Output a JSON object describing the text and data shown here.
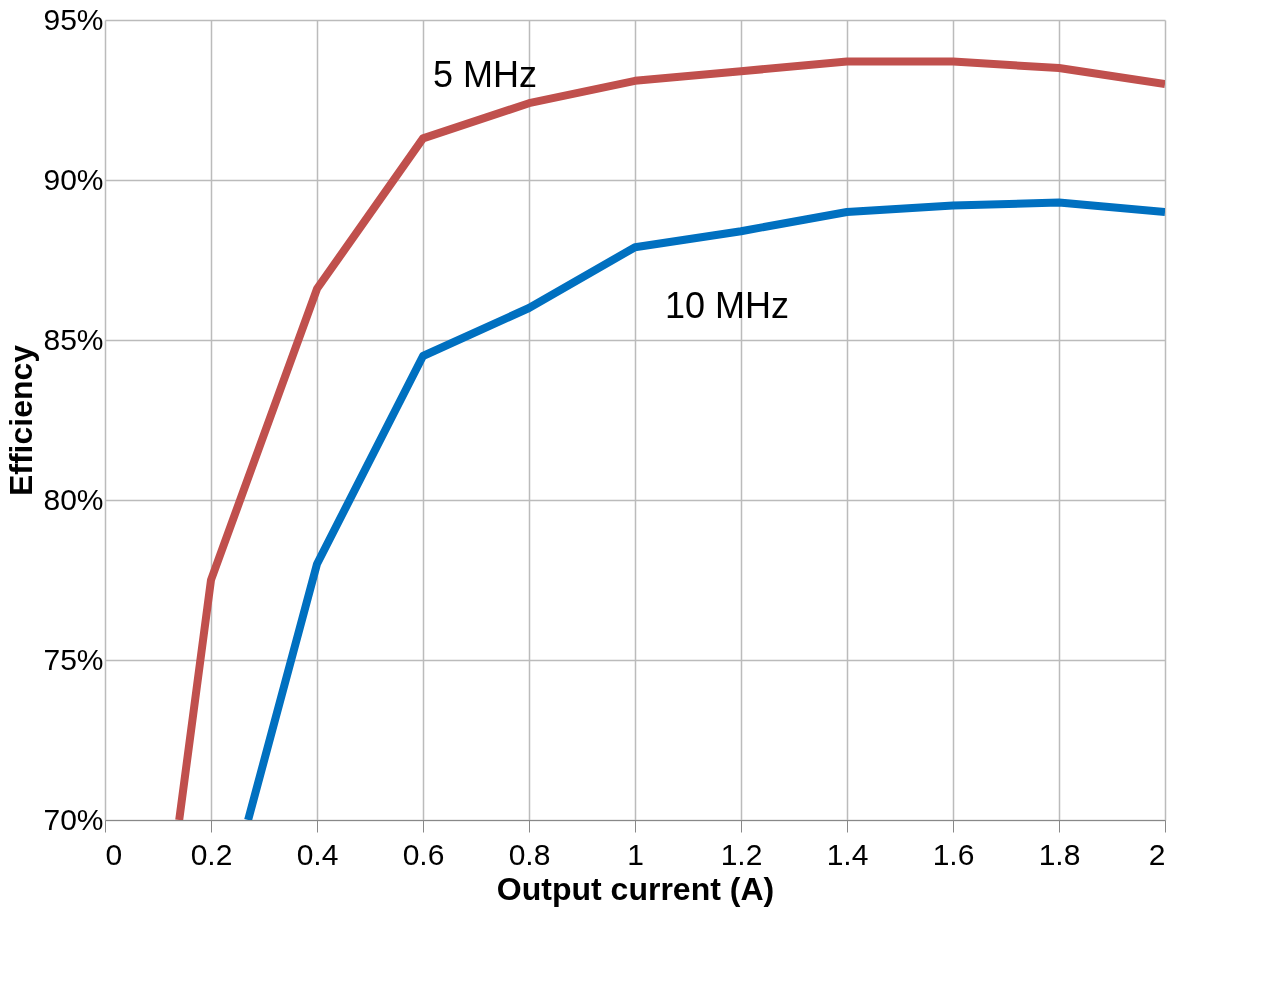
{
  "chart_data": {
    "type": "line",
    "xlabel": "Output current (A)",
    "ylabel": "Efficiency",
    "xlim": [
      0,
      2
    ],
    "xticks": [
      0,
      0.2,
      0.4,
      0.6,
      0.8,
      1,
      1.2,
      1.4,
      1.6,
      1.8,
      2
    ],
    "ylim": [
      70,
      95
    ],
    "yticks": [
      {
        "value": 70,
        "label": "70%"
      },
      {
        "value": 75,
        "label": "75%"
      },
      {
        "value": 80,
        "label": "80%"
      },
      {
        "value": 85,
        "label": "85%"
      },
      {
        "value": 90,
        "label": "90%"
      },
      {
        "value": 95,
        "label": "95%"
      }
    ],
    "grid": true,
    "legend": false,
    "marker": "none",
    "line_style": "solid",
    "series": [
      {
        "name": "5 MHz",
        "color": "#c0504d",
        "x": [
          0.14,
          0.2,
          0.4,
          0.6,
          0.8,
          1.0,
          1.2,
          1.4,
          1.6,
          1.8,
          2.0
        ],
        "values": [
          70,
          77.5,
          86.6,
          91.3,
          92.4,
          93.1,
          93.4,
          93.7,
          93.7,
          93.5,
          93.0
        ]
      },
      {
        "name": "10 MHz",
        "color": "#0070c0",
        "x": [
          0.27,
          0.4,
          0.6,
          0.8,
          1.0,
          1.2,
          1.4,
          1.6,
          1.8,
          2.0
        ],
        "values": [
          70,
          78.0,
          84.5,
          86.0,
          87.9,
          88.4,
          89.0,
          89.2,
          89.3,
          89.0
        ]
      }
    ]
  }
}
